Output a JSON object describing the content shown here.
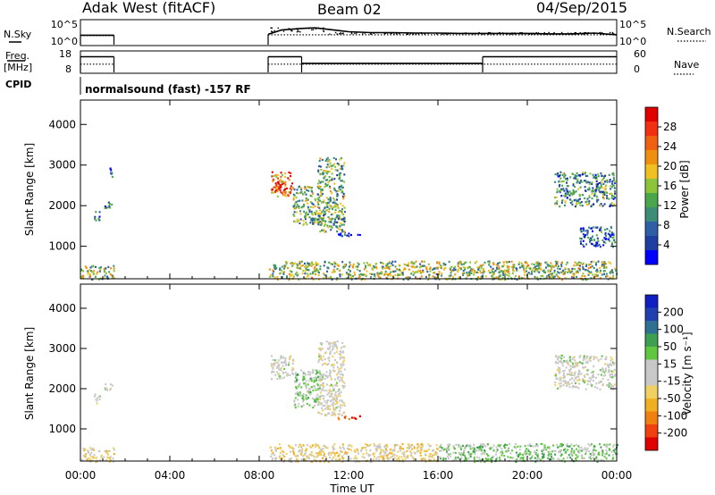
{
  "header": {
    "station": "Adak West (fitACF)",
    "beam": "Beam 02",
    "date": "04/Sep/2015"
  },
  "labels": {
    "nsky": "N.Sky",
    "nsearch": "N.Search",
    "freq_line1": "Freq.",
    "freq_line2": "[MHz]",
    "nave": "Nave",
    "cpid": "CPID",
    "cpid_text": "normalsound (fast) -157 RF",
    "noise_ticks": [
      "10^5",
      "10^0"
    ],
    "freq_ticks": [
      "18",
      "8"
    ],
    "nave_ticks": [
      "60",
      "0"
    ]
  },
  "colorbars": {
    "power": {
      "title": "Power [dB]",
      "colors": [
        "#0000ff",
        "#1e3fa0",
        "#2e5ea6",
        "#3c8c78",
        "#4aa64a",
        "#8cc43c",
        "#f0c020",
        "#f09010",
        "#f06010",
        "#f03010",
        "#e00000"
      ],
      "ticks": [
        "28",
        "24",
        "20",
        "16",
        "12",
        "8",
        "4"
      ]
    },
    "velocity": {
      "title": "Velocity [m s⁻¹]",
      "colors": [
        "#e00000",
        "#f04010",
        "#f08010",
        "#f0b020",
        "#f0d060",
        "#c8c8c8",
        "#c8c8c8",
        "#60c840",
        "#3ca050",
        "#2e7090",
        "#2040b0",
        "#1020c0"
      ],
      "ticks": [
        "200",
        "100",
        "50",
        "15",
        "-15",
        "-50",
        "-100",
        "-200"
      ]
    }
  },
  "chart_data": [
    {
      "type": "line",
      "title": "Adak West (fitACF) Beam 02 04/Sep/2015",
      "panel": "noise",
      "x_unit": "hours UT",
      "xlim": [
        0,
        24
      ],
      "series": [
        {
          "name": "N.Sky",
          "segments": [
            {
              "x": [
                0.0,
                0.5,
                1.0,
                1.5
              ],
              "y": [
                1.8,
                1.8,
                1.8,
                1.8
              ]
            },
            {
              "x": [
                8.4,
                9.0,
                9.5,
                10.0,
                10.5,
                11.0,
                12.0,
                13.0,
                14.0,
                15.0,
                16.0,
                17.0,
                18.0,
                19.0,
                20.0,
                21.0,
                22.0,
                23.0,
                24.0
              ],
              "y": [
                2.0,
                3.0,
                3.2,
                3.4,
                3.5,
                3.2,
                2.6,
                2.4,
                2.4,
                2.3,
                2.3,
                2.2,
                2.2,
                2.2,
                2.2,
                2.1,
                2.1,
                2.3,
                1.9
              ]
            }
          ]
        },
        {
          "name": "N.Search",
          "segments": [
            {
              "x": [
                0.0,
                1.5
              ],
              "y": [
                1.7,
                1.7
              ]
            },
            {
              "x": [
                8.4,
                24.0
              ],
              "y": [
                1.9,
                1.9
              ]
            }
          ]
        }
      ]
    },
    {
      "type": "line",
      "panel": "frequency",
      "x_unit": "hours UT",
      "xlim": [
        0,
        24
      ],
      "ylim": [
        8,
        18
      ],
      "series": [
        {
          "name": "Freq.",
          "segments": [
            {
              "x": [
                0.0,
                1.5
              ],
              "y": [
                15.6,
                15.6
              ]
            },
            {
              "x": [
                8.4,
                9.9
              ],
              "y": [
                15.6,
                15.6
              ]
            },
            {
              "x": [
                9.9,
                18.0
              ],
              "y": [
                12.4,
                12.4
              ]
            },
            {
              "x": [
                18.0,
                24.0
              ],
              "y": [
                15.6,
                15.6
              ]
            }
          ]
        },
        {
          "name": "Nave",
          "segments": [
            {
              "x": [
                0.0,
                1.5
              ],
              "y": [
                12.0,
                12.0
              ]
            },
            {
              "x": [
                8.4,
                24.0
              ],
              "y": [
                12.0,
                12.0
              ]
            }
          ]
        }
      ]
    },
    {
      "type": "heatmap",
      "panel": "power",
      "xlabel": "",
      "ylabel": "Slant Range [km]",
      "x_unit": "hours UT",
      "xlim": [
        0,
        24
      ],
      "ylim": [
        200,
        4600
      ],
      "yticks": [
        1000,
        2000,
        3000,
        4000
      ],
      "colorbar": "Power [dB]",
      "clim": [
        0,
        30
      ],
      "regions": [
        {
          "t": [
            0.6,
            0.9
          ],
          "r": [
            1650,
            1900
          ],
          "value": 9
        },
        {
          "t": [
            1.0,
            1.4
          ],
          "r": [
            1950,
            2150
          ],
          "value": 8
        },
        {
          "t": [
            1.3,
            1.4
          ],
          "r": [
            2700,
            2950
          ],
          "value": 6
        },
        {
          "t": [
            8.5,
            9.5
          ],
          "r": [
            2250,
            2850
          ],
          "value": 22
        },
        {
          "t": [
            8.7,
            9.2
          ],
          "r": [
            2350,
            2600
          ],
          "value": 27
        },
        {
          "t": [
            9.5,
            10.8
          ],
          "r": [
            1550,
            2500
          ],
          "value": 13
        },
        {
          "t": [
            10.6,
            11.8
          ],
          "r": [
            1350,
            3200
          ],
          "value": 12
        },
        {
          "t": [
            11.5,
            12.5
          ],
          "r": [
            1250,
            1350
          ],
          "value": 6
        },
        {
          "t": [
            21.2,
            23.9
          ],
          "r": [
            2000,
            2850
          ],
          "value": 10
        },
        {
          "t": [
            22.3,
            23.9
          ],
          "r": [
            1000,
            1500
          ],
          "value": 7
        },
        {
          "t": [
            0.0,
            1.5
          ],
          "r": [
            200,
            550
          ],
          "value": 14
        },
        {
          "t": [
            8.4,
            24.0
          ],
          "r": [
            200,
            650
          ],
          "value": 14
        }
      ]
    },
    {
      "type": "heatmap",
      "panel": "velocity",
      "xlabel": "Time UT",
      "ylabel": "Slant Range [km]",
      "x_unit": "hours UT",
      "xlim": [
        0,
        24
      ],
      "xticks": [
        "00:00",
        "04:00",
        "08:00",
        "12:00",
        "16:00",
        "20:00",
        "00:00"
      ],
      "ylim": [
        200,
        4600
      ],
      "yticks": [
        1000,
        2000,
        3000,
        4000
      ],
      "colorbar": "Velocity [m s⁻¹]",
      "clim": [
        -200,
        200
      ],
      "regions": [
        {
          "t": [
            0.6,
            0.9
          ],
          "r": [
            1650,
            1900
          ],
          "value": 0
        },
        {
          "t": [
            1.0,
            1.4
          ],
          "r": [
            1950,
            2150
          ],
          "value": 0
        },
        {
          "t": [
            8.5,
            9.5
          ],
          "r": [
            2250,
            2850
          ],
          "value": 0
        },
        {
          "t": [
            9.5,
            10.8
          ],
          "r": [
            1550,
            2500
          ],
          "value": 30
        },
        {
          "t": [
            10.6,
            11.8
          ],
          "r": [
            1350,
            3200
          ],
          "value": -10
        },
        {
          "t": [
            11.5,
            12.5
          ],
          "r": [
            1250,
            1350
          ],
          "value": -150
        },
        {
          "t": [
            21.2,
            23.9
          ],
          "r": [
            2000,
            2850
          ],
          "value": 0
        },
        {
          "t": [
            0.0,
            1.5
          ],
          "r": [
            200,
            550
          ],
          "value": -40
        },
        {
          "t": [
            8.4,
            16.0
          ],
          "r": [
            200,
            650
          ],
          "value": -40
        },
        {
          "t": [
            16.0,
            24.0
          ],
          "r": [
            200,
            650
          ],
          "value": 40
        }
      ]
    }
  ]
}
